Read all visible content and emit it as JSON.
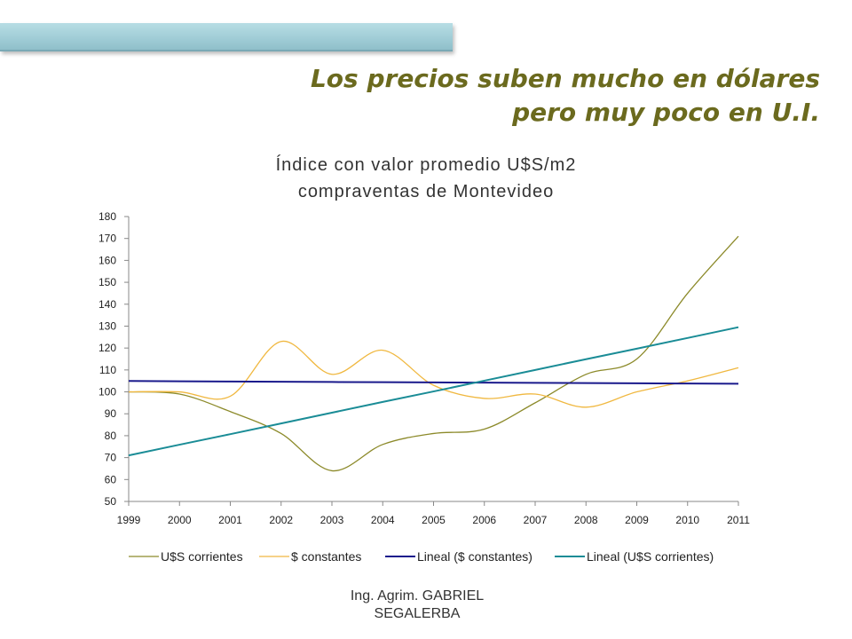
{
  "slide": {
    "title_line1": "Los precios suben mucho en dólares",
    "title_line2": "pero muy poco en U.I.",
    "footer_line1": "Ing. Agrim. GABRIEL",
    "footer_line2": "SEGALERBA"
  },
  "chart_data": {
    "type": "line",
    "title_line1": "Índice con valor promedio U$S/m2",
    "title_line2": "compraventas de Montevideo",
    "categories": [
      "1999",
      "2000",
      "2001",
      "2002",
      "2003",
      "2004",
      "2005",
      "2006",
      "2007",
      "2008",
      "2009",
      "2010",
      "2011"
    ],
    "x": [
      1999,
      2000,
      2001,
      2002,
      2003,
      2004,
      2005,
      2006,
      2007,
      2008,
      2009,
      2010,
      2011
    ],
    "ylim": [
      50,
      180
    ],
    "yticks": [
      50,
      60,
      70,
      80,
      90,
      100,
      110,
      120,
      130,
      140,
      150,
      160,
      170,
      180
    ],
    "legend_position": "bottom",
    "series": [
      {
        "name": "U$S corrientes",
        "color": "#8c8a2a",
        "style": "smooth",
        "values": [
          100,
          99,
          91,
          81,
          64,
          76,
          81,
          83,
          95,
          108,
          115,
          145,
          171
        ]
      },
      {
        "name": "$ constantes",
        "color": "#f0b840",
        "style": "smooth",
        "values": [
          100,
          100,
          98,
          123,
          108,
          119,
          103,
          97,
          99,
          93,
          100,
          105,
          111
        ]
      },
      {
        "name": "Lineal ($ constantes)",
        "color": "#1a1a8c",
        "style": "straight",
        "values": [
          105,
          104.8,
          104.7,
          104.6,
          104.5,
          104.4,
          104.3,
          104.2,
          104.1,
          104,
          103.9,
          103.8,
          103.7
        ]
      },
      {
        "name": "Lineal (U$S corrientes)",
        "color": "#1a8c96",
        "style": "straight",
        "values": [
          71,
          75.9,
          80.7,
          85.6,
          90.5,
          95.4,
          100.2,
          105.1,
          110,
          114.9,
          119.7,
          124.6,
          129.5
        ]
      }
    ]
  }
}
